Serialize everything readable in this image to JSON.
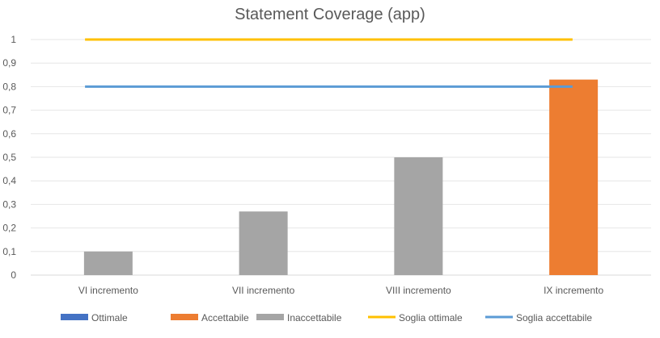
{
  "chart_data": {
    "type": "bar",
    "title": "Statement Coverage (app)",
    "categories": [
      "VI incremento",
      "VII incremento",
      "VIII incremento",
      "IX incremento"
    ],
    "bars": [
      {
        "value": 0.1,
        "series": "Inaccettabile"
      },
      {
        "value": 0.27,
        "series": "Inaccettabile"
      },
      {
        "value": 0.5,
        "series": "Inaccettabile"
      },
      {
        "value": 0.83,
        "series": "Accettabile"
      }
    ],
    "thresholds": [
      {
        "name": "Soglia ottimale",
        "value": 1.0,
        "color": "#ffc000"
      },
      {
        "name": "Soglia accettabile",
        "value": 0.8,
        "color": "#5b9bd5"
      }
    ],
    "ylim": [
      0,
      1
    ],
    "yticks": [
      "0",
      "0,1",
      "0,2",
      "0,3",
      "0,4",
      "0,5",
      "0,6",
      "0,7",
      "0,8",
      "0,9",
      "1"
    ],
    "grid": true,
    "legend_position": "bottom",
    "legend": [
      {
        "name": "Ottimale",
        "color": "#4472c4",
        "kind": "bar"
      },
      {
        "name": "Accettabile",
        "color": "#ed7d31",
        "kind": "bar"
      },
      {
        "name": "Inaccettabile",
        "color": "#a5a5a5",
        "kind": "bar"
      },
      {
        "name": "Soglia ottimale",
        "color": "#ffc000",
        "kind": "line"
      },
      {
        "name": "Soglia accettabile",
        "color": "#5b9bd5",
        "kind": "line"
      }
    ],
    "series_colors": {
      "Ottimale": "#4472c4",
      "Accettabile": "#ed7d31",
      "Inaccettabile": "#a5a5a5"
    }
  }
}
